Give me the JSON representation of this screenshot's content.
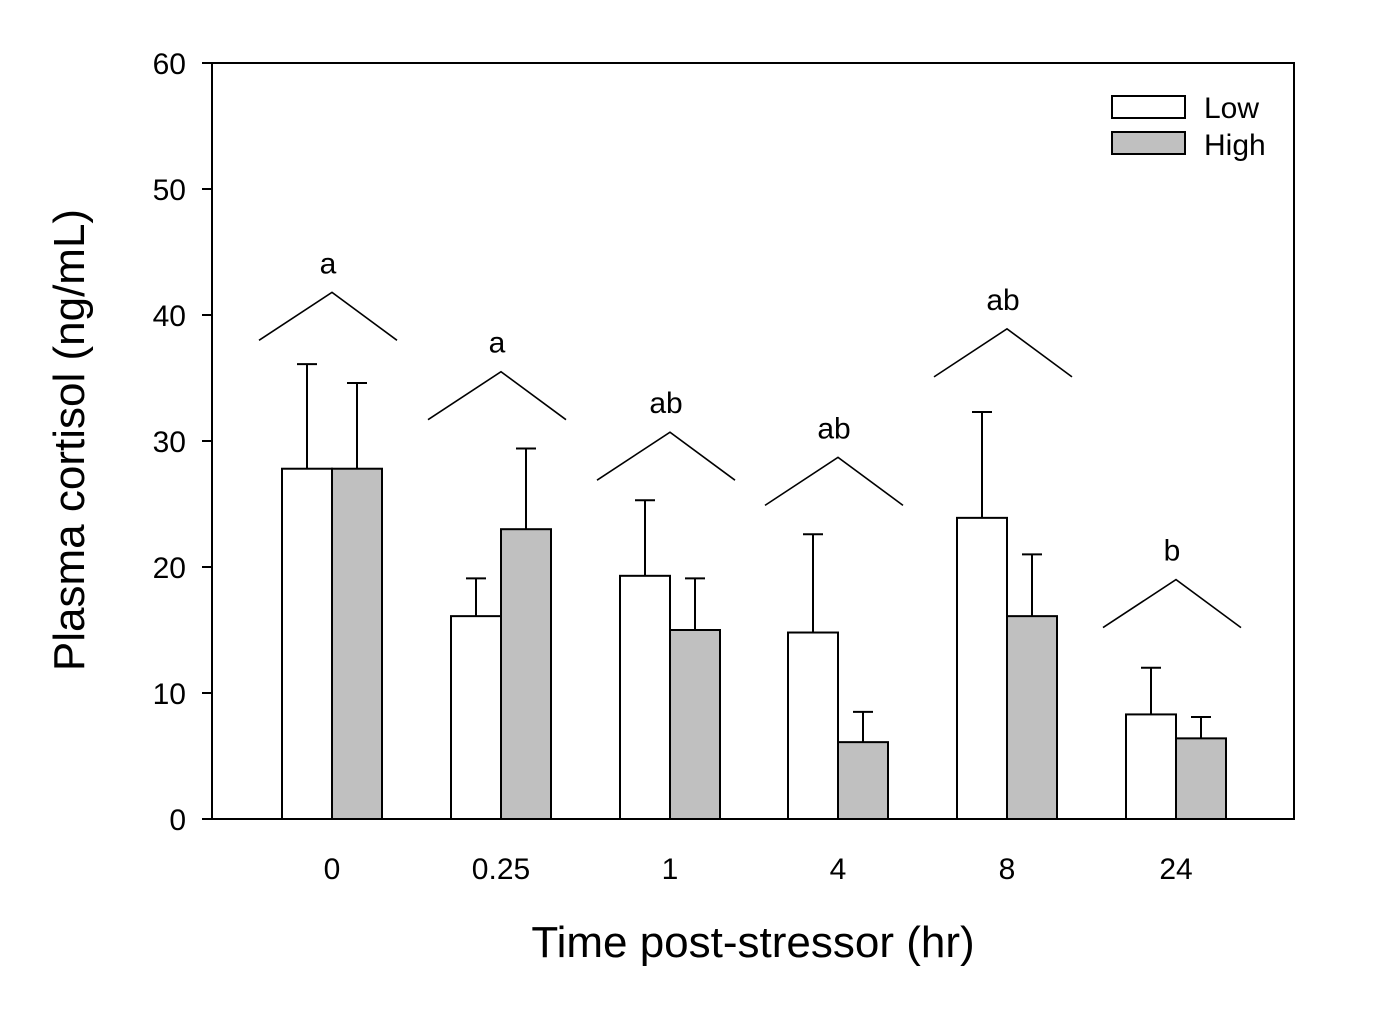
{
  "chart_data": {
    "type": "bar",
    "title": "",
    "xlabel": "Time post-stressor (hr)",
    "ylabel": "Plasma cortisol (ng/mL)",
    "categories": [
      "0",
      "0.25",
      "1",
      "4",
      "8",
      "24"
    ],
    "ylim": [
      0,
      60
    ],
    "yticks": [
      "0",
      "10",
      "20",
      "30",
      "40",
      "50",
      "60"
    ],
    "series": [
      {
        "name": "Low",
        "color": "#ffffff",
        "values": [
          27.8,
          16.1,
          19.3,
          14.8,
          23.9,
          8.3
        ],
        "errors": [
          8.3,
          3.0,
          6.0,
          7.8,
          8.4,
          3.7
        ]
      },
      {
        "name": "High",
        "color": "#c0c0c0",
        "values": [
          27.8,
          23.0,
          15.0,
          6.1,
          16.1,
          6.4
        ],
        "errors": [
          6.8,
          6.4,
          4.1,
          2.4,
          4.9,
          1.7
        ]
      }
    ],
    "significance": [
      {
        "category": "0",
        "label": "a",
        "peak": 41.8
      },
      {
        "category": "0.25",
        "label": "a",
        "peak": 35.5
      },
      {
        "category": "1",
        "label": "ab",
        "peak": 30.7
      },
      {
        "category": "4",
        "label": "ab",
        "peak": 28.7
      },
      {
        "category": "8",
        "label": "ab",
        "peak": 38.9
      },
      {
        "category": "24",
        "label": "b",
        "peak": 19.0
      }
    ],
    "legend_position": "top-right",
    "grid": false
  }
}
